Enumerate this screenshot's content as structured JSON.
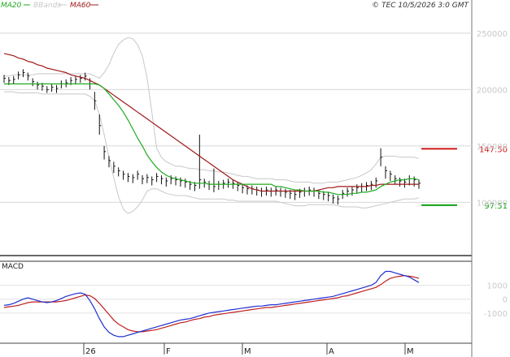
{
  "header": {
    "legend": [
      {
        "label": "MA20",
        "color": "#1faa1f"
      },
      {
        "label": "BBands",
        "color": "#c8c8c8"
      },
      {
        "label": "MA60",
        "color": "#a01818"
      }
    ],
    "timestamp": "© TEC 10/5/2026 3:0 GMT"
  },
  "price_panel": {
    "y_ticks": [
      "250000",
      "200000",
      "150000",
      "100000"
    ],
    "levels": [
      {
        "value": 147.5,
        "label": "147.50",
        "color": "#d01818"
      },
      {
        "value": 97.51,
        "label": "97.51",
        "color": "#10a010"
      }
    ]
  },
  "macd_panel": {
    "title": "MACD",
    "y_ticks": [
      "1000",
      "0",
      "-1000"
    ],
    "line_colors": {
      "macd": "#2030d0",
      "signal": "#c02020"
    }
  },
  "x_axis": {
    "labels": [
      "26",
      "F",
      "M",
      "A",
      "M"
    ]
  },
  "chart_data": {
    "type": "line",
    "price": {
      "ylim": [
        60,
        265
      ],
      "ohlc_close": [
        210,
        208,
        209,
        213,
        215,
        212,
        207,
        204,
        203,
        200,
        202,
        201,
        205,
        206,
        208,
        209,
        210,
        212,
        205,
        190,
        168,
        145,
        137,
        132,
        128,
        125,
        123,
        122,
        125,
        121,
        122,
        120,
        123,
        121,
        119,
        121,
        120,
        119,
        118,
        116,
        115,
        120,
        118,
        116,
        114,
        116,
        117,
        118,
        117,
        115,
        113,
        112,
        112,
        111,
        110,
        111,
        110,
        111,
        110,
        109,
        108,
        107,
        109,
        110,
        111,
        110,
        108,
        107,
        106,
        104,
        103,
        108,
        110,
        111,
        113,
        114,
        115,
        116,
        119,
        140,
        128,
        125,
        121,
        119,
        118,
        121,
        120,
        117
      ],
      "ohlc_high": [
        213,
        211,
        212,
        216,
        218,
        215,
        210,
        207,
        206,
        203,
        205,
        204,
        208,
        209,
        211,
        212,
        213,
        215,
        210,
        198,
        178,
        150,
        141,
        136,
        131,
        128,
        126,
        125,
        128,
        124,
        125,
        123,
        126,
        124,
        122,
        124,
        123,
        122,
        121,
        119,
        118,
        160,
        121,
        119,
        130,
        119,
        120,
        121,
        120,
        118,
        116,
        115,
        115,
        114,
        113,
        114,
        113,
        114,
        113,
        112,
        111,
        110,
        112,
        113,
        114,
        113,
        111,
        110,
        109,
        107,
        106,
        111,
        113,
        114,
        116,
        117,
        118,
        119,
        122,
        148,
        132,
        128,
        124,
        122,
        121,
        124,
        123,
        120
      ],
      "ohlc_low": [
        206,
        204,
        205,
        209,
        211,
        208,
        203,
        200,
        199,
        197,
        198,
        197,
        201,
        202,
        204,
        205,
        206,
        208,
        200,
        182,
        160,
        138,
        131,
        126,
        123,
        120,
        118,
        117,
        120,
        116,
        117,
        115,
        118,
        116,
        114,
        116,
        115,
        114,
        113,
        111,
        110,
        112,
        113,
        111,
        109,
        111,
        112,
        113,
        112,
        110,
        108,
        107,
        107,
        106,
        105,
        106,
        105,
        106,
        105,
        104,
        103,
        102,
        104,
        105,
        106,
        105,
        103,
        102,
        101,
        99,
        98,
        103,
        105,
        106,
        108,
        109,
        110,
        111,
        113,
        132,
        121,
        119,
        116,
        114,
        113,
        115,
        114,
        112
      ],
      "ma20": [
        205,
        205,
        205,
        205,
        205,
        205,
        205,
        205,
        205,
        205,
        205,
        205,
        205,
        205,
        205,
        205,
        205,
        205,
        205,
        205,
        204,
        201,
        196,
        191,
        186,
        180,
        173,
        165,
        157,
        150,
        142,
        136,
        131,
        127,
        124,
        122,
        121,
        120,
        119,
        118,
        117,
        117,
        117,
        116,
        116,
        116,
        116,
        116,
        116,
        116,
        116,
        116,
        116,
        116,
        116,
        116,
        116,
        114,
        114,
        113,
        112,
        111,
        111,
        110,
        110,
        110,
        110,
        109,
        109,
        108,
        107,
        107,
        107,
        108,
        108,
        109,
        109,
        110,
        111,
        114,
        116,
        118,
        119,
        120,
        120,
        121,
        121,
        120
      ],
      "ma60": [
        232,
        231,
        230,
        228,
        227,
        225,
        224,
        222,
        221,
        219,
        218,
        217,
        216,
        215,
        213,
        212,
        211,
        210,
        208,
        206,
        204,
        201,
        198,
        195,
        192,
        189,
        186,
        183,
        180,
        177,
        174,
        171,
        168,
        165,
        162,
        159,
        156,
        153,
        150,
        147,
        144,
        141,
        138,
        135,
        132,
        129,
        126,
        123,
        120,
        118,
        116,
        114,
        112,
        111,
        110,
        110,
        110,
        110,
        110,
        110,
        110,
        110,
        110,
        110,
        110,
        110,
        111,
        112,
        113,
        113,
        114,
        114,
        114,
        114,
        114,
        114,
        114,
        115,
        115,
        116,
        116,
        116,
        116,
        116,
        116,
        116,
        116,
        116
      ],
      "bb_upper": [
        212,
        212,
        213,
        213,
        213,
        213,
        213,
        214,
        214,
        214,
        214,
        214,
        214,
        214,
        214,
        214,
        214,
        214,
        214,
        212,
        210,
        215,
        222,
        232,
        240,
        244,
        246,
        245,
        240,
        230,
        210,
        180,
        148,
        140,
        136,
        134,
        132,
        132,
        131,
        130,
        130,
        129,
        129,
        128,
        128,
        127,
        127,
        126,
        125,
        124,
        123,
        123,
        122,
        121,
        121,
        121,
        121,
        120,
        120,
        120,
        119,
        118,
        118,
        118,
        118,
        117,
        117,
        117,
        118,
        118,
        118,
        119,
        120,
        121,
        122,
        124,
        126,
        129,
        134,
        140,
        141,
        141,
        141,
        140,
        140,
        140,
        140,
        139
      ],
      "bb_lower": [
        198,
        198,
        198,
        197,
        197,
        197,
        197,
        197,
        196,
        196,
        196,
        196,
        196,
        196,
        196,
        196,
        196,
        196,
        194,
        190,
        178,
        160,
        140,
        122,
        105,
        94,
        90,
        92,
        96,
        102,
        110,
        112,
        112,
        110,
        108,
        107,
        106,
        106,
        106,
        105,
        104,
        103,
        103,
        103,
        103,
        103,
        103,
        102,
        102,
        101,
        101,
        101,
        101,
        101,
        101,
        101,
        101,
        101,
        100,
        99,
        98,
        97,
        97,
        97,
        98,
        98,
        98,
        98,
        98,
        98,
        97,
        96,
        96,
        96,
        96,
        95,
        95,
        96,
        97,
        98,
        99,
        100,
        101,
        102,
        103,
        103,
        103,
        104
      ]
    },
    "macd": {
      "ylim": [
        -3000,
        2500
      ],
      "macd": [
        -450,
        -400,
        -300,
        -150,
        0,
        100,
        0,
        -100,
        -200,
        -250,
        -200,
        -100,
        50,
        200,
        300,
        400,
        450,
        350,
        -100,
        -700,
        -1400,
        -2000,
        -2400,
        -2600,
        -2700,
        -2700,
        -2600,
        -2500,
        -2400,
        -2300,
        -2200,
        -2100,
        -2000,
        -1900,
        -1800,
        -1700,
        -1600,
        -1500,
        -1450,
        -1400,
        -1300,
        -1200,
        -1100,
        -1000,
        -950,
        -900,
        -850,
        -800,
        -750,
        -700,
        -650,
        -600,
        -550,
        -500,
        -500,
        -450,
        -400,
        -400,
        -350,
        -300,
        -250,
        -200,
        -150,
        -100,
        -50,
        0,
        50,
        100,
        150,
        200,
        300,
        400,
        500,
        600,
        700,
        800,
        900,
        1000,
        1200,
        1700,
        2000,
        2000,
        1900,
        1800,
        1700,
        1600,
        1400,
        1200
      ],
      "signal": [
        -600,
        -550,
        -500,
        -450,
        -350,
        -250,
        -200,
        -200,
        -200,
        -200,
        -200,
        -200,
        -150,
        -100,
        0,
        100,
        200,
        300,
        250,
        50,
        -300,
        -700,
        -1100,
        -1500,
        -1800,
        -2000,
        -2200,
        -2300,
        -2350,
        -2350,
        -2300,
        -2250,
        -2200,
        -2100,
        -2000,
        -1900,
        -1800,
        -1700,
        -1650,
        -1550,
        -1450,
        -1400,
        -1300,
        -1250,
        -1150,
        -1100,
        -1050,
        -1000,
        -950,
        -900,
        -850,
        -800,
        -750,
        -700,
        -650,
        -600,
        -600,
        -550,
        -500,
        -450,
        -400,
        -350,
        -300,
        -250,
        -200,
        -150,
        -100,
        -50,
        0,
        50,
        100,
        200,
        250,
        350,
        450,
        550,
        650,
        750,
        850,
        1050,
        1300,
        1500,
        1600,
        1650,
        1700,
        1650,
        1600,
        1500
      ]
    }
  }
}
